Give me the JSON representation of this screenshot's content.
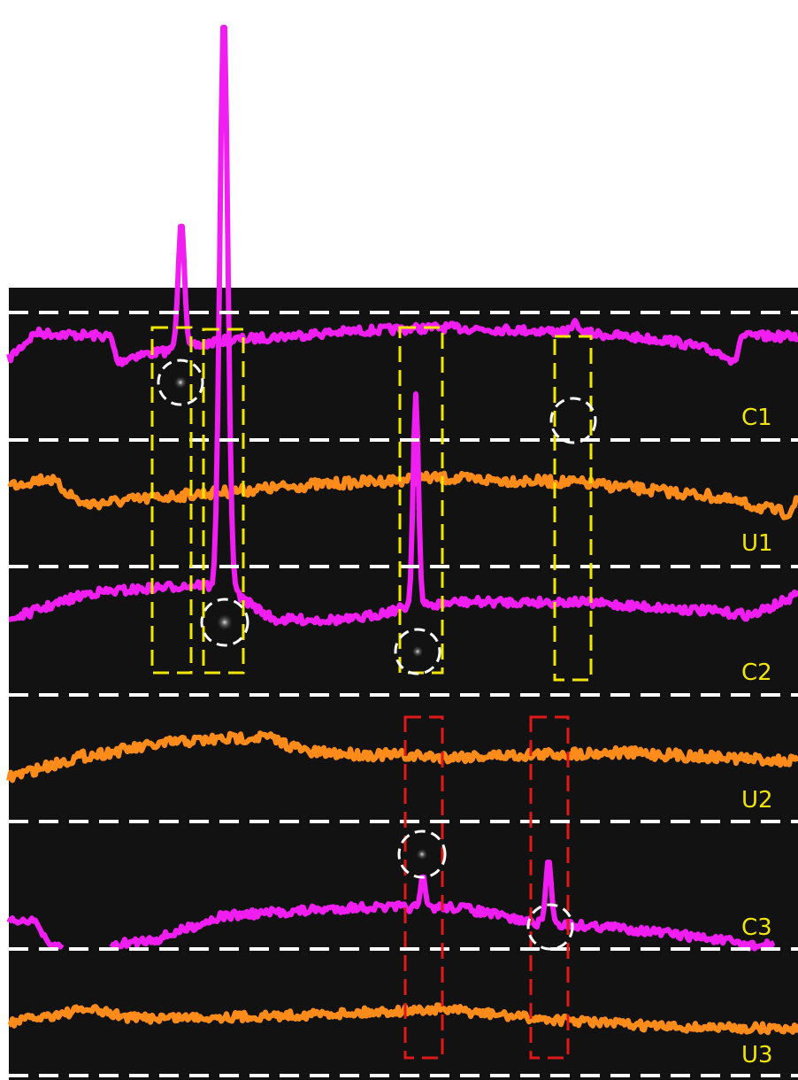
{
  "traces": [
    {
      "label": "C1"
    },
    {
      "label": "U1"
    },
    {
      "label": "C2"
    },
    {
      "label": "U2"
    },
    {
      "label": "C3"
    },
    {
      "label": "U3"
    }
  ]
}
